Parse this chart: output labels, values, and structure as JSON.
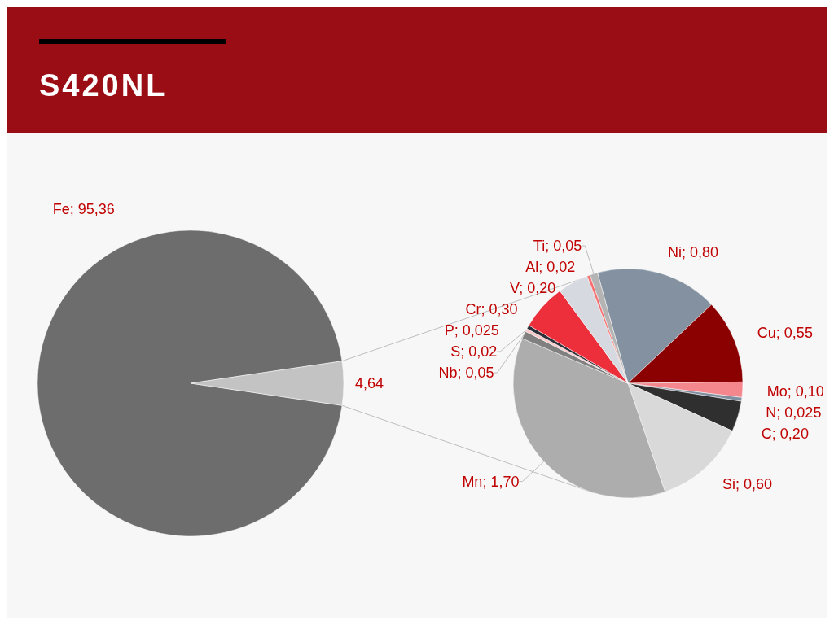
{
  "chart_data": [
    {
      "type": "pie",
      "title": "S420NL",
      "categories": [
        "Fe",
        null
      ],
      "values": [
        95.36,
        4.64
      ],
      "colors": [
        "#6d6d6d",
        "#c3c3c3"
      ],
      "value_labels": [
        "95,36",
        "4,64"
      ]
    },
    {
      "type": "pie",
      "categories": [
        "Ni",
        "Cu",
        "Mo",
        "N",
        "C",
        "Si",
        "Mn",
        "Nb",
        "S",
        "P",
        "Cr",
        "V",
        "Al",
        "Ti"
      ],
      "values": [
        0.8,
        0.55,
        0.1,
        0.025,
        0.2,
        0.6,
        1.7,
        0.05,
        0.02,
        0.025,
        0.3,
        0.2,
        0.02,
        0.05
      ],
      "colors": [
        "#8391a0",
        "#8b0000",
        "#f4878d",
        "#7f8fa0",
        "#2f2f2f",
        "#d9d9d9",
        "#adadad",
        "#808080",
        "#f8c8c8",
        "#2a2f38",
        "#ed2f3c",
        "#d6d9df",
        "#f77070",
        "#b4b4b4"
      ],
      "value_labels": [
        "0,80",
        "0,55",
        "0,10",
        "0,025",
        "0,20",
        "0,60",
        "1,70",
        "0,05",
        "0,02",
        "0,025",
        "0,30",
        "0,20",
        "0,02",
        "0,05"
      ]
    }
  ]
}
